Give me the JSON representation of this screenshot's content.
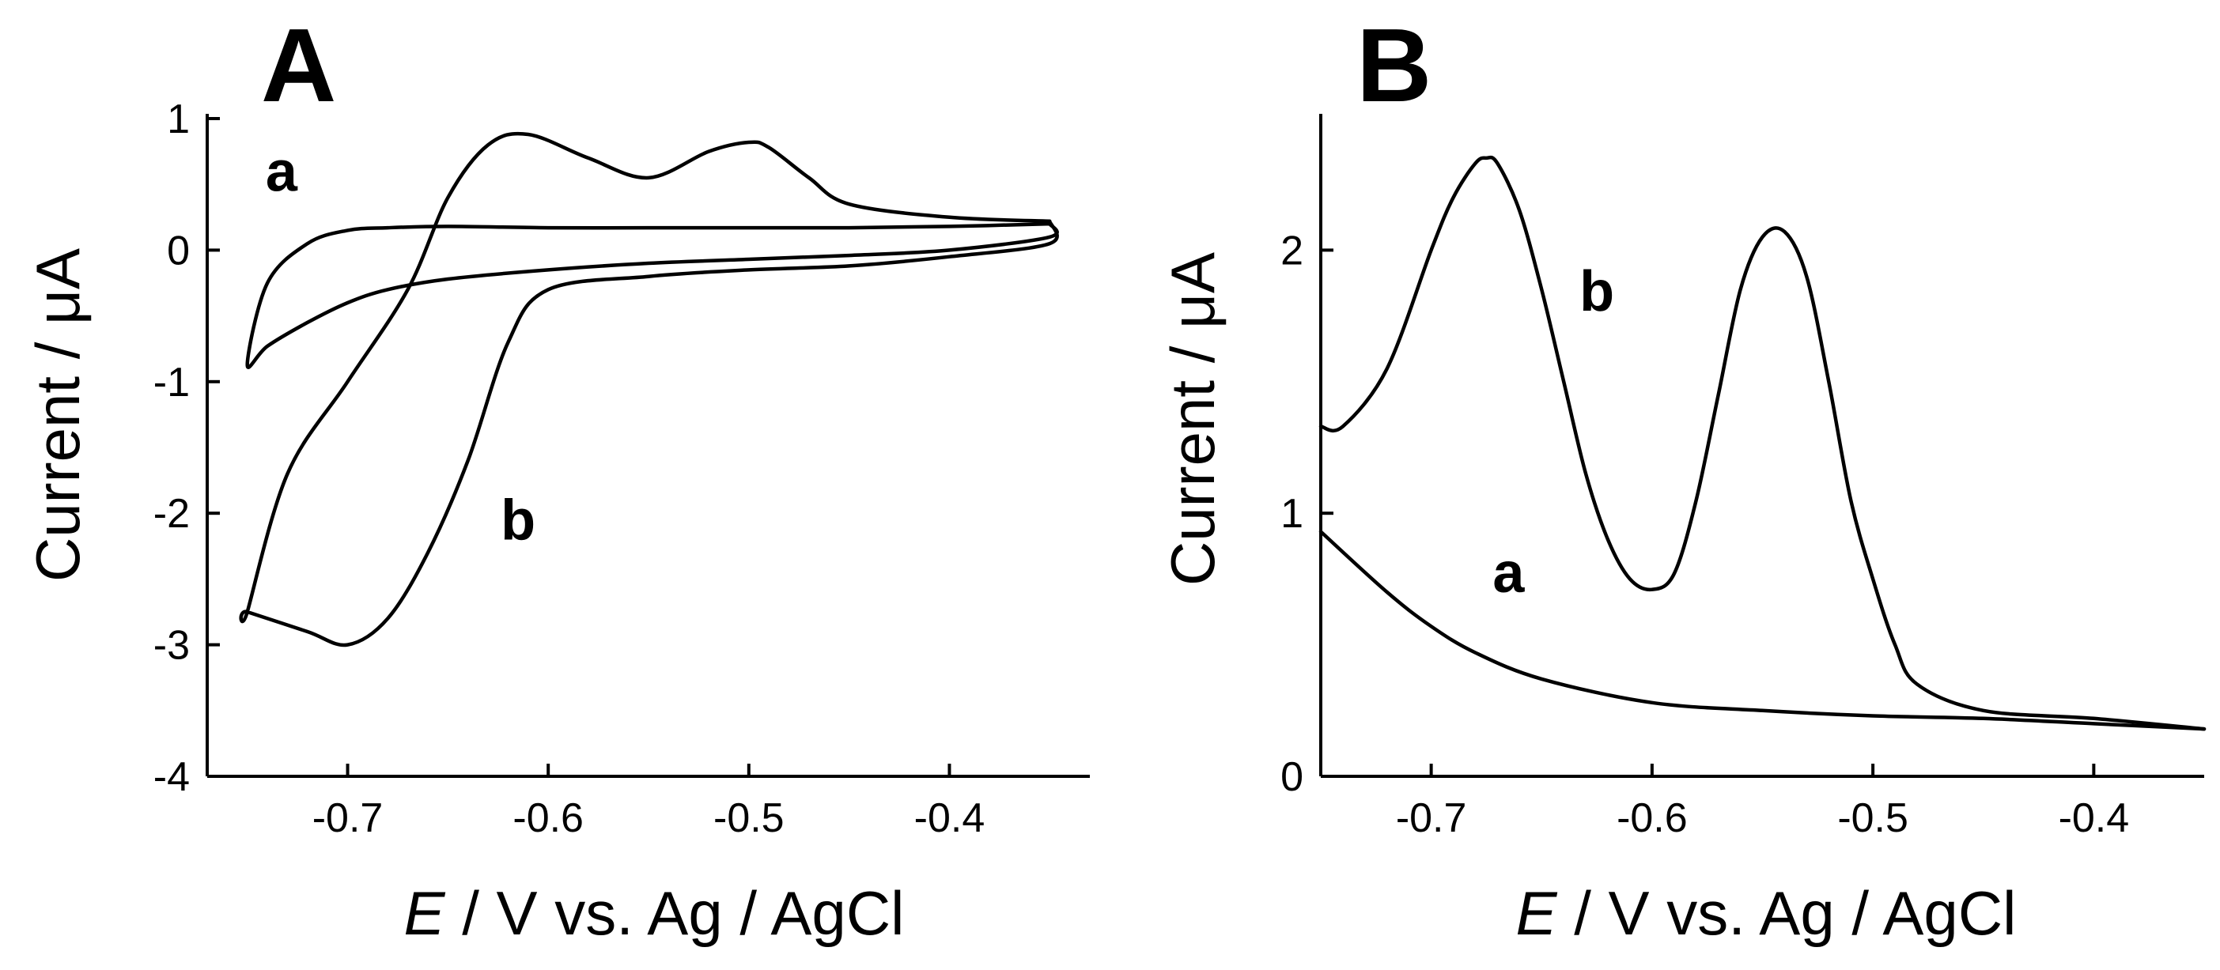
{
  "chart_data": [
    {
      "type": "line",
      "panel": "A",
      "title": "A",
      "xlabel_italic": "E",
      "xlabel_rest": " / V vs. Ag / AgCl",
      "ylabel": "Current / μA",
      "xlim": [
        -0.77,
        -0.33
      ],
      "ylim": [
        -4,
        1
      ],
      "xticks": [
        -0.7,
        -0.6,
        -0.5,
        -0.4
      ],
      "xtick_labels": [
        "-0.7",
        "-0.6",
        "-0.5",
        "-0.4"
      ],
      "yticks": [
        1,
        0,
        -1,
        -2,
        -3,
        -4
      ],
      "ytick_labels": [
        "1",
        "0",
        "-1",
        "-2",
        "-3",
        "-4"
      ],
      "series": [
        {
          "name": "a",
          "label": "a",
          "x": [
            -0.35,
            -0.4,
            -0.45,
            -0.5,
            -0.55,
            -0.6,
            -0.65,
            -0.68,
            -0.7,
            -0.72,
            -0.74,
            -0.75,
            -0.74,
            -0.72,
            -0.7,
            -0.68,
            -0.65,
            -0.6,
            -0.55,
            -0.5,
            -0.45,
            -0.4,
            -0.35,
            -0.35
          ],
          "y": [
            0.2,
            0.18,
            0.17,
            0.17,
            0.17,
            0.17,
            0.18,
            0.17,
            0.15,
            0.05,
            -0.25,
            -0.87,
            -0.73,
            -0.55,
            -0.4,
            -0.3,
            -0.22,
            -0.15,
            -0.1,
            -0.07,
            -0.04,
            0.0,
            0.1,
            0.2
          ],
          "label_pos": [
            -0.733,
            0.45
          ]
        },
        {
          "name": "b",
          "label": "b",
          "x": [
            -0.35,
            -0.4,
            -0.45,
            -0.47,
            -0.49,
            -0.5,
            -0.52,
            -0.55,
            -0.58,
            -0.61,
            -0.63,
            -0.65,
            -0.67,
            -0.7,
            -0.73,
            -0.75,
            -0.75,
            -0.72,
            -0.7,
            -0.68,
            -0.66,
            -0.64,
            -0.62,
            -0.6,
            -0.55,
            -0.5,
            -0.45,
            -0.4,
            -0.35,
            -0.35
          ],
          "y": [
            0.22,
            0.25,
            0.35,
            0.55,
            0.78,
            0.82,
            0.75,
            0.55,
            0.7,
            0.88,
            0.8,
            0.4,
            -0.3,
            -1.0,
            -1.7,
            -2.75,
            -2.75,
            -2.9,
            -3.0,
            -2.8,
            -2.3,
            -1.6,
            -0.7,
            -0.3,
            -0.2,
            -0.15,
            -0.12,
            -0.05,
            0.05,
            0.22
          ],
          "label_pos": [
            -0.615,
            -2.2
          ]
        }
      ]
    },
    {
      "type": "line",
      "panel": "B",
      "title": "B",
      "xlabel_italic": "E",
      "xlabel_rest": " / V vs. Ag / AgCl",
      "ylabel": "Current / μA",
      "xlim": [
        -0.75,
        -0.35
      ],
      "ylim": [
        0,
        2.5
      ],
      "xticks": [
        -0.7,
        -0.6,
        -0.5,
        -0.4
      ],
      "xtick_labels": [
        "-0.7",
        "-0.6",
        "-0.5",
        "-0.4"
      ],
      "yticks": [
        0,
        1,
        2
      ],
      "ytick_labels": [
        "0",
        "1",
        "2"
      ],
      "series": [
        {
          "name": "a",
          "label": "a",
          "x": [
            -0.75,
            -0.72,
            -0.7,
            -0.68,
            -0.65,
            -0.6,
            -0.55,
            -0.5,
            -0.45,
            -0.4,
            -0.35
          ],
          "y": [
            0.93,
            0.7,
            0.57,
            0.47,
            0.37,
            0.28,
            0.25,
            0.23,
            0.22,
            0.2,
            0.18
          ],
          "label_pos": [
            -0.665,
            0.7
          ]
        },
        {
          "name": "b",
          "label": "b",
          "x": [
            -0.75,
            -0.74,
            -0.72,
            -0.7,
            -0.69,
            -0.68,
            -0.675,
            -0.67,
            -0.66,
            -0.65,
            -0.64,
            -0.63,
            -0.62,
            -0.61,
            -0.6,
            -0.59,
            -0.58,
            -0.57,
            -0.56,
            -0.55,
            -0.54,
            -0.53,
            -0.52,
            -0.51,
            -0.5,
            -0.49,
            -0.48,
            -0.45,
            -0.4,
            -0.35
          ],
          "y": [
            1.33,
            1.33,
            1.55,
            2.0,
            2.2,
            2.33,
            2.35,
            2.33,
            2.15,
            1.85,
            1.5,
            1.15,
            0.9,
            0.75,
            0.71,
            0.77,
            1.05,
            1.45,
            1.85,
            2.05,
            2.07,
            1.9,
            1.5,
            1.05,
            0.75,
            0.5,
            0.35,
            0.25,
            0.22,
            0.18
          ],
          "label_pos": [
            -0.625,
            1.77
          ]
        }
      ]
    }
  ]
}
